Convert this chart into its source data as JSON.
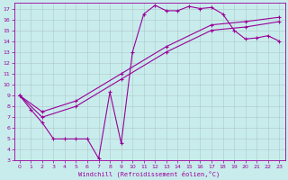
{
  "background_color": "#c8ecec",
  "line_color": "#990099",
  "grid_color": "#b0c8c8",
  "xlabel": "Windchill (Refroidissement éolien,°C)",
  "xlim": [
    -0.5,
    23.5
  ],
  "ylim": [
    3,
    17.5
  ],
  "yticks": [
    3,
    4,
    5,
    6,
    7,
    8,
    9,
    10,
    11,
    12,
    13,
    14,
    15,
    16,
    17
  ],
  "xticks": [
    0,
    1,
    2,
    3,
    4,
    5,
    6,
    7,
    8,
    9,
    10,
    11,
    12,
    13,
    14,
    15,
    16,
    17,
    18,
    19,
    20,
    21,
    22,
    23
  ],
  "curve1_x": [
    0,
    1,
    2,
    3,
    4,
    5,
    6,
    7,
    8,
    9,
    10,
    11,
    12,
    13,
    14,
    15,
    16,
    17,
    18,
    19,
    20,
    21,
    22,
    23
  ],
  "curve1_y": [
    9.0,
    7.7,
    6.5,
    5.0,
    5.0,
    5.0,
    5.0,
    3.2,
    9.3,
    4.6,
    13.0,
    16.5,
    17.3,
    16.8,
    16.8,
    17.2,
    17.0,
    17.1,
    16.5,
    15.0,
    14.2,
    14.3,
    14.5,
    14.0
  ],
  "curve2_x": [
    0,
    2,
    5,
    9,
    13,
    17,
    20,
    23
  ],
  "curve2_y": [
    9.0,
    7.5,
    8.5,
    11.0,
    13.5,
    15.5,
    15.8,
    16.2
  ],
  "curve3_x": [
    0,
    2,
    5,
    9,
    13,
    17,
    20,
    23
  ],
  "curve3_y": [
    9.0,
    7.0,
    8.0,
    10.5,
    13.0,
    15.0,
    15.3,
    15.8
  ]
}
